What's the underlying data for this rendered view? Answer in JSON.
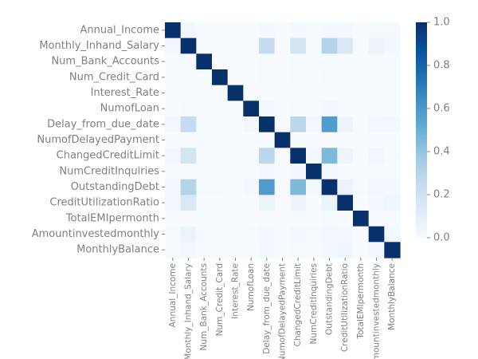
{
  "chart_data": {
    "type": "heatmap",
    "title": "",
    "xlabel": "",
    "ylabel": "",
    "row_labels": [
      "Annual_Income",
      "Monthly_Inhand_Salary",
      "Num_Bank_Accounts",
      "Num_Credit_Card",
      "Interest_Rate",
      "NumofLoan",
      "Delay_from_due_date",
      "NumofDelayedPayment",
      "ChangedCreditLimit",
      "NumCreditInquiries",
      "OutstandingDebt",
      "CreditUtilizationRatio",
      "TotalEMIpermonth",
      "Amountinvestedmonthly",
      "MonthlyBalance"
    ],
    "col_labels": [
      "Annual_Income",
      "Monthly_Inhand_Salary",
      "Num_Bank_Accounts",
      "Num_Credit_Card",
      "Interest_Rate",
      "NumofLoan",
      "Delay_from_due_date",
      "NumofDelayedPayment",
      "ChangedCreditLimit",
      "NumCreditInquiries",
      "OutstandingDebt",
      "CreditUtilizationRatio",
      "TotalEMIpermonth",
      "Amountinvestedmonthly",
      "MonthlyBalance"
    ],
    "values": [
      [
        1.0,
        0.03,
        0.0,
        0.0,
        0.0,
        0.0,
        0.02,
        0.0,
        0.02,
        0.01,
        0.02,
        0.02,
        0.0,
        0.01,
        0.01
      ],
      [
        0.03,
        1.0,
        0.0,
        0.0,
        0.0,
        0.01,
        0.25,
        0.0,
        0.18,
        0.01,
        0.3,
        0.15,
        0.0,
        0.06,
        0.02
      ],
      [
        0.0,
        0.0,
        1.0,
        0.01,
        0.0,
        0.0,
        0.01,
        0.0,
        0.01,
        0.01,
        0.01,
        0.0,
        0.0,
        0.0,
        0.0
      ],
      [
        0.0,
        0.0,
        0.01,
        1.0,
        0.0,
        0.0,
        0.01,
        0.0,
        0.01,
        0.0,
        0.01,
        0.0,
        0.0,
        0.0,
        0.0
      ],
      [
        0.0,
        0.0,
        0.0,
        0.0,
        1.0,
        0.0,
        0.0,
        0.0,
        0.0,
        0.0,
        0.0,
        0.0,
        0.0,
        0.0,
        0.0
      ],
      [
        0.0,
        0.01,
        0.0,
        0.0,
        0.0,
        1.0,
        0.02,
        0.0,
        0.01,
        0.0,
        0.02,
        0.0,
        0.0,
        0.01,
        0.0
      ],
      [
        0.02,
        0.25,
        0.01,
        0.01,
        0.0,
        0.02,
        1.0,
        0.0,
        0.28,
        0.02,
        0.58,
        0.05,
        0.0,
        0.02,
        0.02
      ],
      [
        0.0,
        0.0,
        0.0,
        0.0,
        0.0,
        0.0,
        0.0,
        1.0,
        0.0,
        0.0,
        0.0,
        0.0,
        0.0,
        0.0,
        0.0
      ],
      [
        0.02,
        0.18,
        0.01,
        0.01,
        0.0,
        0.01,
        0.28,
        0.0,
        1.0,
        0.02,
        0.45,
        0.05,
        0.0,
        0.03,
        0.01
      ],
      [
        0.01,
        0.01,
        0.01,
        0.0,
        0.0,
        0.0,
        0.02,
        0.0,
        0.02,
        1.0,
        0.02,
        0.0,
        0.0,
        0.01,
        0.0
      ],
      [
        0.02,
        0.3,
        0.01,
        0.01,
        0.0,
        0.02,
        0.58,
        0.0,
        0.45,
        0.02,
        1.0,
        0.06,
        0.01,
        0.03,
        0.02
      ],
      [
        0.02,
        0.15,
        0.0,
        0.0,
        0.0,
        0.0,
        0.05,
        0.0,
        0.05,
        0.0,
        0.06,
        1.0,
        0.0,
        0.02,
        0.04
      ],
      [
        0.0,
        0.0,
        0.0,
        0.0,
        0.0,
        0.0,
        0.0,
        0.0,
        0.0,
        0.0,
        0.01,
        0.0,
        1.0,
        0.0,
        0.0
      ],
      [
        0.01,
        0.06,
        0.0,
        0.0,
        0.0,
        0.01,
        0.02,
        0.0,
        0.03,
        0.01,
        0.03,
        0.02,
        0.0,
        1.0,
        0.02
      ],
      [
        0.01,
        0.02,
        0.0,
        0.0,
        0.0,
        0.0,
        0.02,
        0.0,
        0.01,
        0.0,
        0.02,
        0.04,
        0.0,
        0.02,
        1.0
      ]
    ],
    "vmin": 0.0,
    "vmax": 1.0,
    "colormap": "Blues",
    "colorbar": {
      "ticks": [
        0.0,
        0.2,
        0.4,
        0.6,
        0.8,
        1.0
      ],
      "tick_labels": [
        "0.0",
        "0.2",
        "0.4",
        "0.6",
        "0.8",
        "1.0"
      ]
    },
    "grid": false,
    "legend": "colorbar-right"
  }
}
